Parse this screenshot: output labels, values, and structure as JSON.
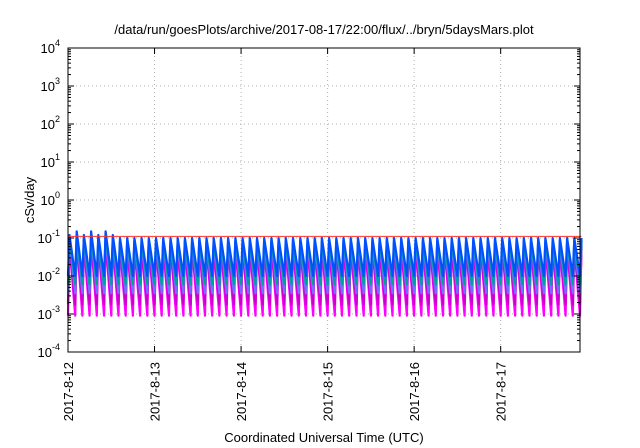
{
  "chart_data": {
    "type": "line",
    "title": "/data/run/goesPlots/archive/2017-08-17/22:00/flux/../bryn/5daysMars.plot",
    "xlabel": "Coordinated Universal Time (UTC)",
    "ylabel": "cSv/day",
    "yscale": "log",
    "ylim": [
      0.0001,
      10000
    ],
    "y_ticks": [
      {
        "base": "10",
        "exp": "-4",
        "value": 0.0001
      },
      {
        "base": "10",
        "exp": "-3",
        "value": 0.001
      },
      {
        "base": "10",
        "exp": "-2",
        "value": 0.01
      },
      {
        "base": "10",
        "exp": "-1",
        "value": 0.1
      },
      {
        "base": "10",
        "exp": "0",
        "value": 1
      },
      {
        "base": "10",
        "exp": "1",
        "value": 10
      },
      {
        "base": "10",
        "exp": "2",
        "value": 100
      },
      {
        "base": "10",
        "exp": "3",
        "value": 1000
      },
      {
        "base": "10",
        "exp": "4",
        "value": 10000
      }
    ],
    "xlim": [
      "2017-8-12 00:00",
      "2017-8-17 22:00"
    ],
    "x_tick_labels": [
      "2017-8-12",
      "2017-8-13",
      "2017-8-14",
      "2017-8-15",
      "2017-8-16",
      "2017-8-17"
    ],
    "grid": true,
    "legend": "none",
    "cycle_hours": 2,
    "series": [
      {
        "color": "#ff00ff",
        "peak": 0.055,
        "trough": 0.0009
      },
      {
        "color": "#cc00cc",
        "peak": 0.06,
        "trough": 0.0018
      },
      {
        "color": "#7070ff",
        "peak": 0.075,
        "trough": 0.0035
      },
      {
        "color": "#00a0a0",
        "peak": 0.085,
        "trough": 0.006
      },
      {
        "color": "#0050ff",
        "peak": 0.1,
        "trough": 0.01
      },
      {
        "color": "#ff3030",
        "peak": 0.11,
        "trough": 0.11
      }
    ]
  }
}
